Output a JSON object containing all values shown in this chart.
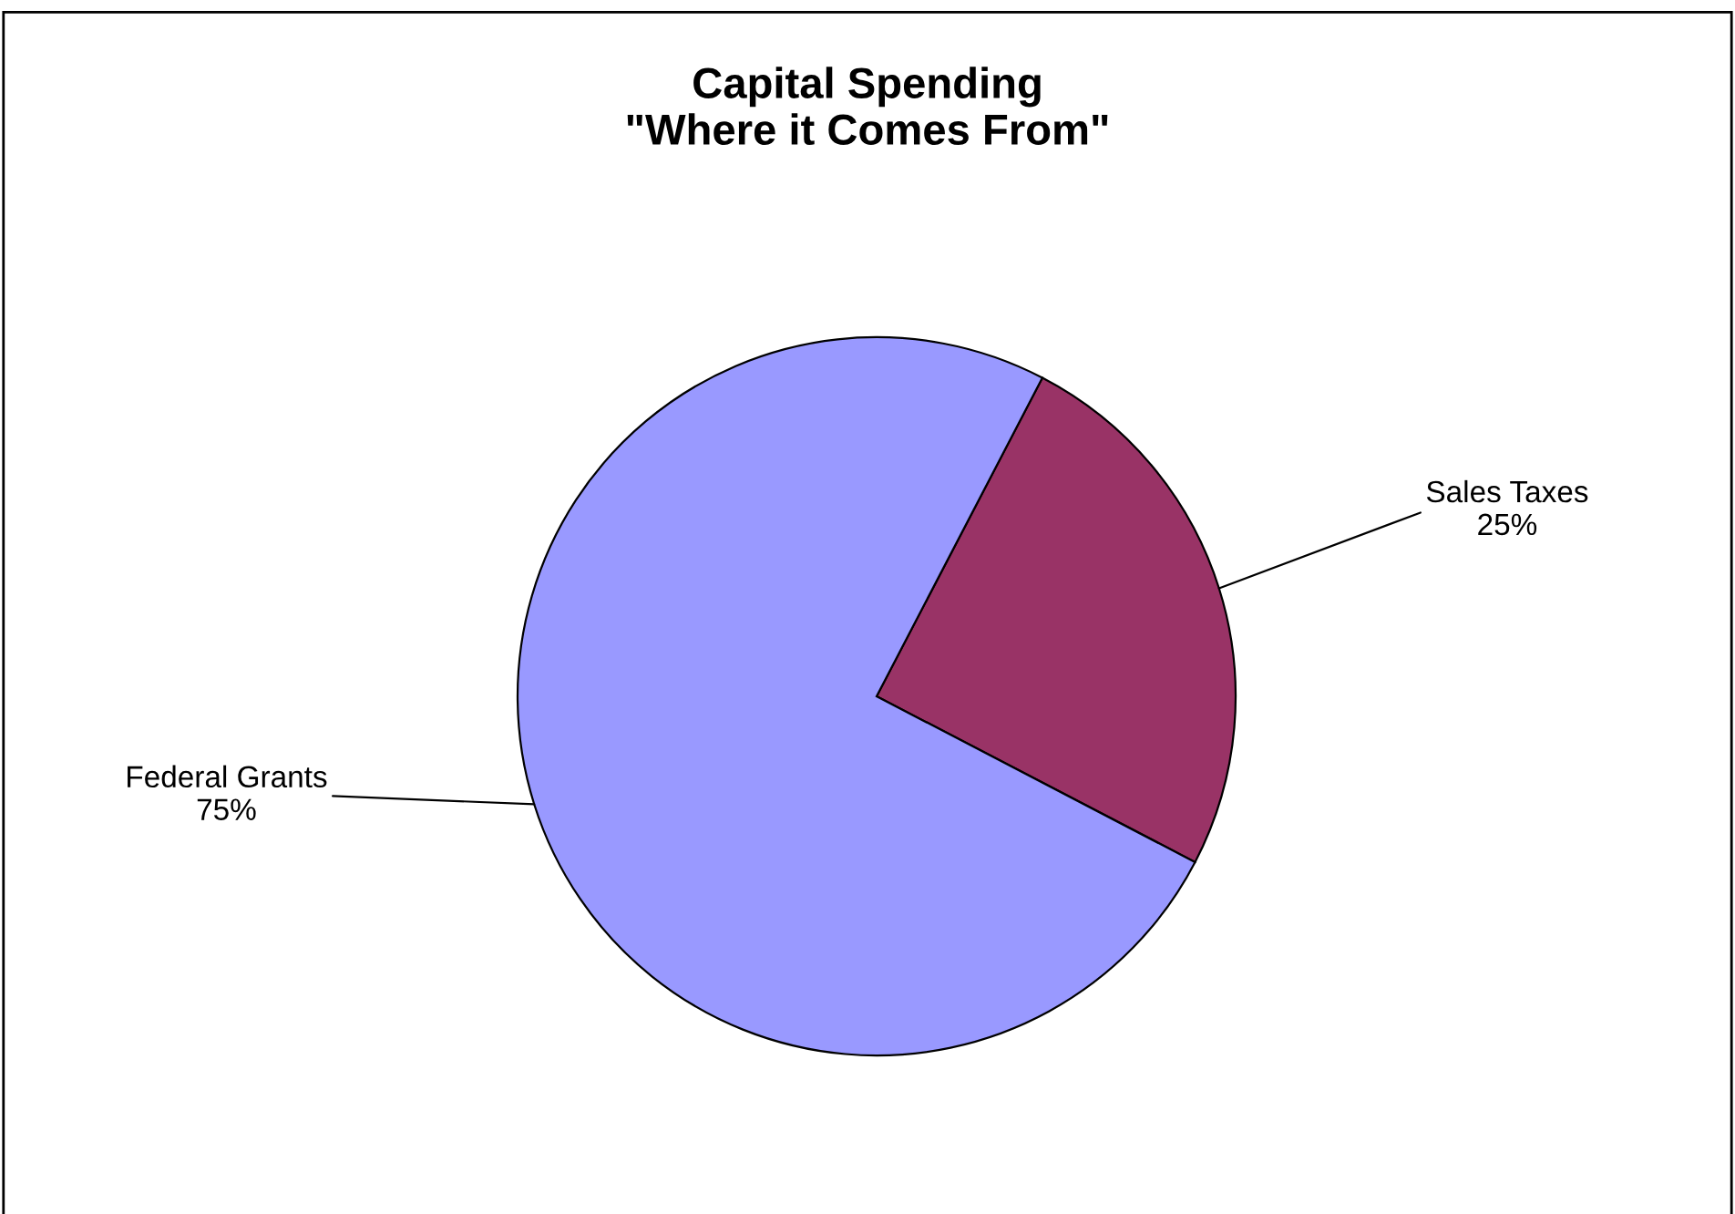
{
  "chart_data": {
    "type": "pie",
    "title": "Capital Spending\n\"Where it Comes From\"",
    "categories": [
      "Sales Taxes",
      "Federal Grants"
    ],
    "values": [
      25,
      75
    ],
    "value_labels": [
      "25%",
      "75%"
    ],
    "colors": [
      "#993366",
      "#9999ff"
    ]
  }
}
